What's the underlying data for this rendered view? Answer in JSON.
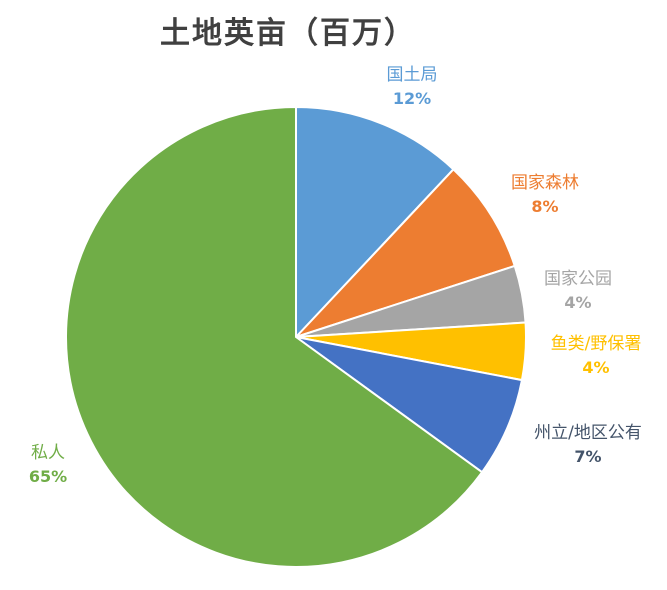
{
  "chart_data": {
    "type": "pie",
    "title": "土地英亩（百万）",
    "categories": [
      "国土局",
      "国家森林",
      "国家公园",
      "鱼类/野保署",
      "州立/地区公有",
      "私人"
    ],
    "values": [
      12,
      8,
      4,
      4,
      7,
      65
    ],
    "value_labels": [
      "12%",
      "8%",
      "4%",
      "4%",
      "7%",
      "65%"
    ],
    "colors": [
      "#5B9BD5",
      "#ED7D31",
      "#A5A5A5",
      "#FFC000",
      "#4472C4",
      "#70AD47"
    ],
    "label_colors": [
      "#5B9BD5",
      "#ED7D31",
      "#A5A5A5",
      "#FFC000",
      "#44546A",
      "#70AD47"
    ],
    "start_angle_deg": 0,
    "direction": "clockwise"
  }
}
